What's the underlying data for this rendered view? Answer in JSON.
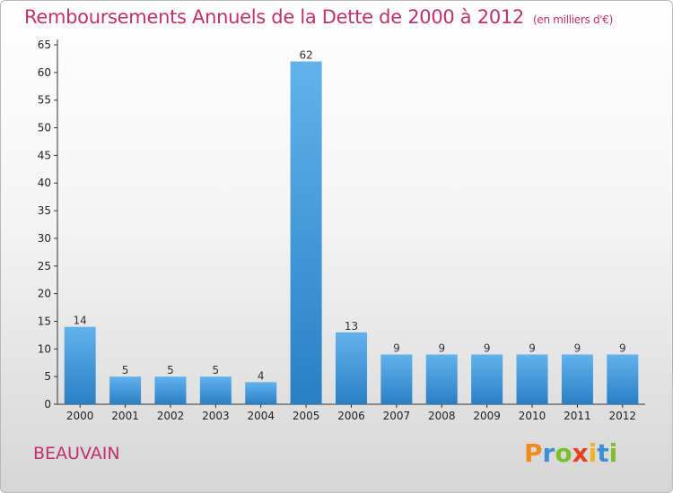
{
  "title": "Remboursements Annuels de la Dette de 2000 à 2012",
  "unit_note": "(en milliers d'€)",
  "city": "BEAUVAIN",
  "logo": {
    "letters": [
      "P",
      "r",
      "o",
      "x",
      "i",
      "t",
      "i"
    ],
    "colors": [
      "#f08a1c",
      "#3a8fd8",
      "#7bbf2a",
      "#e8401c",
      "#f0b41c",
      "#3a8fd8",
      "#7bbf2a"
    ]
  },
  "colors": {
    "bar_top": "#62b2ec",
    "bar_bottom": "#2a7fc4",
    "title": "#c0306a"
  },
  "chart_data": {
    "type": "bar",
    "categories": [
      "2000",
      "2001",
      "2002",
      "2003",
      "2004",
      "2005",
      "2006",
      "2007",
      "2008",
      "2009",
      "2010",
      "2011",
      "2012"
    ],
    "values": [
      14,
      5,
      5,
      5,
      4,
      62,
      13,
      9,
      9,
      9,
      9,
      9,
      9
    ],
    "title": "Remboursements Annuels de la Dette de 2000 à 2012",
    "ylim": [
      0,
      65
    ],
    "yticks": [
      0,
      5,
      10,
      15,
      20,
      25,
      30,
      35,
      40,
      45,
      50,
      55,
      60,
      65
    ],
    "grid": false,
    "legend": "none"
  }
}
